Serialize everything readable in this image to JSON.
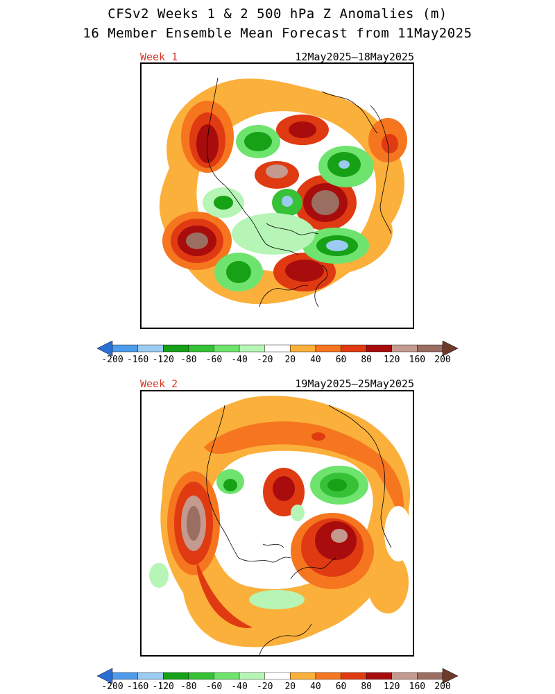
{
  "header": {
    "title": "CFSv2 Weeks 1 & 2 500 hPa Z Anomalies (m)",
    "subtitle": "16 Member Ensemble Mean Forecast from 11May2025"
  },
  "panels": [
    {
      "label": "Week 1",
      "dates": "12May2025–18May2025"
    },
    {
      "label": "Week 2",
      "dates": "19May2025–25May2025"
    }
  ],
  "colorbar": {
    "levels": [
      "-200",
      "-160",
      "-120",
      "-80",
      "-60",
      "-40",
      "-20",
      "20",
      "40",
      "60",
      "80",
      "120",
      "160",
      "200"
    ],
    "colors": [
      "#2b6fd6",
      "#4d9bea",
      "#9ccbf2",
      "#16a116",
      "#36c136",
      "#6ee36e",
      "#b6f5b6",
      "#ffffff",
      "#fbb03b",
      "#f5761e",
      "#e03a12",
      "#a80c0c",
      "#c59a8e",
      "#9b6e62",
      "#6e3b2a"
    ],
    "units": "m"
  },
  "legend_colors": {
    "strong_negative": "#4d9bea",
    "negative": "#16a116",
    "positive": "#fbb03b",
    "strong_positive": "#a80c0c"
  }
}
